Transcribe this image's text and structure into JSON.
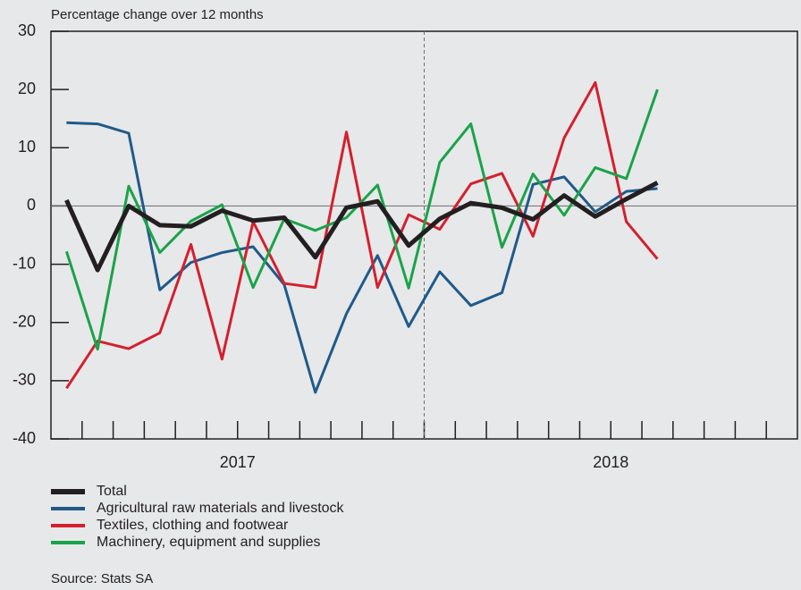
{
  "chart_data": {
    "type": "line",
    "y_label": "Percentage change over 12 months",
    "categories": [
      null,
      null,
      null,
      null,
      null,
      null,
      null,
      null,
      null,
      null,
      null,
      null,
      null,
      null,
      null,
      null,
      null,
      null,
      null,
      null,
      null,
      null,
      null,
      null
    ],
    "year_labels": [
      "2017",
      "2018"
    ],
    "ylim": [
      -40,
      30
    ],
    "yticks": [
      30,
      20,
      10,
      0,
      -10,
      -20,
      -30,
      -40
    ],
    "series": [
      {
        "name": "Total",
        "color": "#231f20",
        "width": 5,
        "values": [
          1,
          -11,
          0,
          -3.3,
          -3.5,
          -0.8,
          -2.5,
          -2,
          -8.8,
          -0.3,
          0.8,
          -6.8,
          -2.2,
          0.5,
          -0.3,
          -2.3,
          1.8,
          -1.8,
          1.2,
          4,
          null,
          null,
          null,
          null
        ]
      },
      {
        "name": "Agricultural raw materials and livestock",
        "color": "#1f5a8a",
        "width": 3,
        "values": [
          14.3,
          14.1,
          12.5,
          -14.4,
          -9.7,
          -8,
          -7,
          -13.5,
          -32,
          -18.5,
          -8.5,
          -20.7,
          -11.3,
          -17.1,
          -14.9,
          3.7,
          5,
          -1,
          2.5,
          3,
          null,
          null,
          null,
          null
        ]
      },
      {
        "name": "Textiles, clothing and footwear",
        "color": "#d3202f",
        "width": 3,
        "values": [
          -31.3,
          -23.2,
          -24.5,
          -21.8,
          -6.6,
          -26.3,
          -2.7,
          -13.3,
          -14,
          12.7,
          -14,
          -1.5,
          -4,
          3.8,
          5.6,
          -5.2,
          11.7,
          21.2,
          -2.7,
          -9.1,
          null,
          null,
          null,
          null
        ]
      },
      {
        "name": "Machinery, equipment and supplies",
        "color": "#1aa34a",
        "width": 3,
        "values": [
          -7.8,
          -24.6,
          3.4,
          -8,
          -2.6,
          0.2,
          -14,
          -2.2,
          -4.2,
          -2,
          3.6,
          -14.1,
          7.5,
          14.1,
          -7.1,
          5.5,
          -1.6,
          6.6,
          4.7,
          20,
          null,
          null,
          null,
          null
        ]
      }
    ],
    "draw_order": [
      1,
      2,
      3,
      0
    ],
    "source": "Source: Stats SA"
  }
}
